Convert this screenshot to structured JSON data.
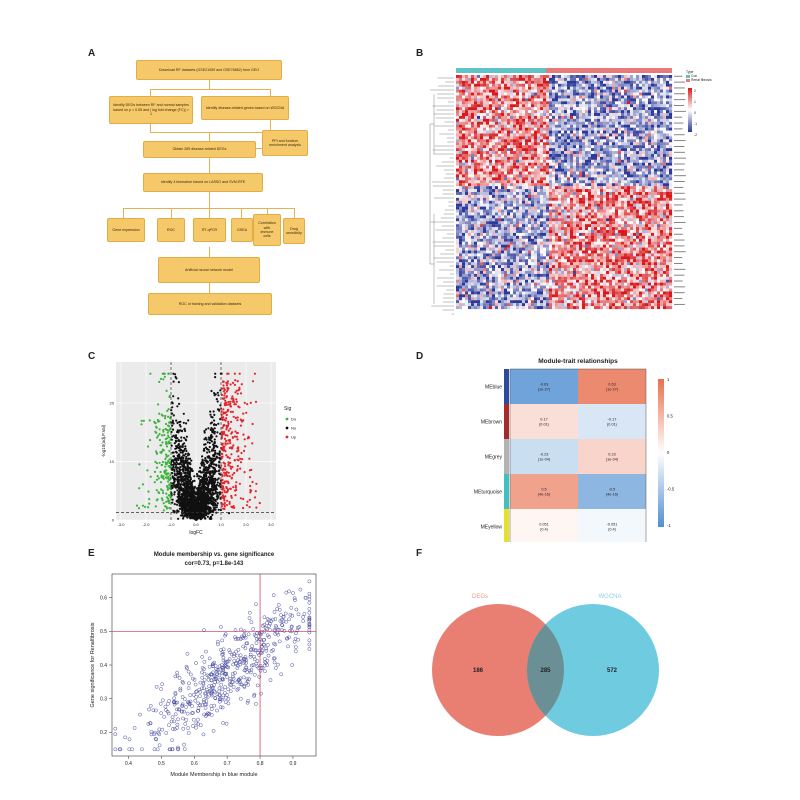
{
  "figure": {
    "panel_letters": [
      "A",
      "B",
      "C",
      "D",
      "E",
      "F"
    ]
  },
  "panelA": {
    "boxes": {
      "download": "Download RF datasets (GSE21059 and GSE76882) from GEO",
      "degs": "Identify DEGs between RF and normal samples based on p < 0.05 and | log fold change (FC)| > 1",
      "wgcna": "Identify disease-related genes based on WGCNA",
      "obtain": "Obtain 285 disease-related DEGs",
      "ppi": "PPI and function enrichment analysis",
      "identify": "Identify 4 biomarker based on LASSO and SVM-RFE",
      "gene_expression": "Gene expression",
      "roc": "ROC",
      "rtqpcr": "RT-qPCR",
      "gsea": "GSEA",
      "correlation": "Correlation with immune cells",
      "drug": "Drug sensitivity",
      "ann": "Artificial neural network model",
      "roc_training": "ROC of training and validation datasets"
    }
  },
  "panelB": {
    "legend_title": "Type",
    "legend_items": [
      "Con",
      "Renal fibrosis"
    ],
    "scale_labels": [
      "2",
      "1",
      "0",
      "-1",
      "-2"
    ],
    "colors": {
      "high": "#d7191c",
      "mid": "#ffffff",
      "low": "#2b3a9a",
      "con": "#5fc2c6",
      "rf": "#e87a7a"
    }
  },
  "chart_data": [
    {
      "panel": "C",
      "type": "scatter",
      "title": "",
      "xlabel": "logFC",
      "ylabel": "-log10(adj.P.Val)",
      "xlim": [
        -3.2,
        3.2
      ],
      "ylim": [
        0,
        27
      ],
      "xticks": [
        "-3.0",
        "-2.0",
        "-1.0",
        "0.0",
        "1.0",
        "2.0",
        "3.0"
      ],
      "yticks": [
        "0",
        "10",
        "20"
      ],
      "thresholds": {
        "logFC": [
          -1,
          1
        ],
        "adjP_log": 1.3
      },
      "legend_title": "Sig",
      "series": [
        {
          "name": "Down",
          "color": "#3cb43c"
        },
        {
          "name": "Not",
          "color": "#111111"
        },
        {
          "name": "Up",
          "color": "#e3252c"
        }
      ]
    },
    {
      "panel": "D",
      "type": "heatmap",
      "title": "Module-trait relationships",
      "rows": [
        "MEblue",
        "MEbrown",
        "MEgrey",
        "MEturquoise",
        "MEyellow"
      ],
      "row_colors": [
        "#2c4aa0",
        "#a52a2a",
        "#b3b3b3",
        "#40c0c0",
        "#e8e02a"
      ],
      "columns": [
        "Con",
        "Renal fibrosis"
      ],
      "values": [
        [
          -0.63,
          0.63
        ],
        [
          0.17,
          -0.17
        ],
        [
          -0.23,
          0.23
        ],
        [
          0.5,
          -0.5
        ],
        [
          0.051,
          -0.051
        ]
      ],
      "pvalues": [
        [
          "(1e-27)",
          "(1e-27)"
        ],
        [
          "(0.01)",
          "(0.01)"
        ],
        [
          "(1e-04)",
          "(1e-04)"
        ],
        [
          "(4e-16)",
          "(4e-16)"
        ],
        [
          "(0.4)",
          "(0.4)"
        ]
      ],
      "cell_text": [
        [
          "-0.63",
          "0.63"
        ],
        [
          "0.17",
          "-0.17"
        ],
        [
          "-0.23",
          "0.23"
        ],
        [
          "0.5",
          "-0.5"
        ],
        [
          "0.051",
          "-0.051"
        ]
      ],
      "colorbar_ticks": [
        "1",
        "0.5",
        "0",
        "-0.5",
        "-1"
      ],
      "colors": {
        "pos": "#e8704f",
        "neg": "#4f8fd0",
        "zero": "#ffffff"
      }
    },
    {
      "panel": "E",
      "type": "scatter",
      "title": "Module membership vs. gene significance",
      "subtitle": "cor=0.73, p=1.8e-143",
      "xlabel": "Module Membership in blue module",
      "ylabel": "Gene significance for Renalfibrosis",
      "xlim": [
        0.35,
        0.97
      ],
      "ylim": [
        0.13,
        0.67
      ],
      "xticks": [
        0.4,
        0.5,
        0.6,
        0.7,
        0.8,
        0.9
      ],
      "yticks": [
        0.2,
        0.3,
        0.4,
        0.5,
        0.6
      ],
      "reference_lines": {
        "x": 0.8,
        "y": 0.5
      },
      "point_color": "#4b4ea0",
      "correlation": 0.73
    },
    {
      "panel": "F",
      "type": "venn",
      "sets": [
        {
          "name": "DEGs",
          "only": 186,
          "color": "#e87f72"
        },
        {
          "name": "WGCNA",
          "only": 572,
          "color": "#6fcbe0"
        }
      ],
      "intersection": 285,
      "intersection_color": "#6a8f94"
    }
  ]
}
